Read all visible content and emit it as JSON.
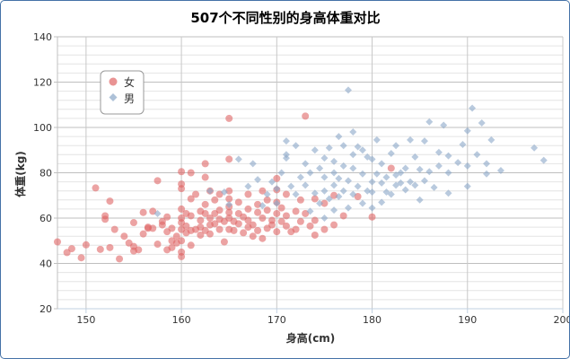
{
  "chart_data": {
    "type": "scatter",
    "title": "507个不同性别的身高体重对比",
    "xlabel": "身高(cm)",
    "ylabel": "体重(kg)",
    "xlim": [
      147,
      200
    ],
    "ylim": [
      20,
      140
    ],
    "xticks": [
      150,
      160,
      170,
      180,
      190,
      200
    ],
    "yticks": [
      20,
      40,
      60,
      80,
      100,
      120,
      140
    ],
    "x_tick_labels": [
      "150",
      "160",
      "170",
      "180",
      "190",
      "200"
    ],
    "y_tick_labels": [
      "20",
      "40",
      "60",
      "80",
      "100",
      "120",
      "140"
    ],
    "grid": true,
    "legend_position": "top-left",
    "series": [
      {
        "name": "女",
        "color": "#e06565",
        "marker": "circle",
        "points": [
          [
            147.0,
            49.5
          ],
          [
            148.0,
            44.8
          ],
          [
            148.5,
            46.5
          ],
          [
            149.5,
            42.5
          ],
          [
            150.0,
            48.2
          ],
          [
            151.0,
            73.3
          ],
          [
            151.5,
            46.2
          ],
          [
            152.0,
            59.5
          ],
          [
            152.0,
            61.0
          ],
          [
            152.5,
            47.0
          ],
          [
            152.5,
            67.5
          ],
          [
            153.0,
            55.0
          ],
          [
            153.5,
            42.0
          ],
          [
            154.0,
            52.0
          ],
          [
            154.5,
            49.0
          ],
          [
            155.0,
            45.5
          ],
          [
            155.0,
            47.5
          ],
          [
            155.0,
            58.0
          ],
          [
            155.5,
            46.0
          ],
          [
            156.0,
            53.0
          ],
          [
            156.0,
            62.5
          ],
          [
            156.5,
            55.5
          ],
          [
            157.0,
            63.0
          ],
          [
            157.0,
            55.5
          ],
          [
            157.5,
            48.5
          ],
          [
            157.5,
            76.5
          ],
          [
            158.0,
            57.0
          ],
          [
            158.0,
            58.5
          ],
          [
            158.5,
            54.0
          ],
          [
            158.5,
            46.0
          ],
          [
            159.0,
            50.0
          ],
          [
            159.0,
            55.5
          ],
          [
            159.0,
            47.0
          ],
          [
            159.5,
            52.0
          ],
          [
            159.5,
            49.0
          ],
          [
            160.0,
            50.0
          ],
          [
            160.0,
            55.0
          ],
          [
            160.0,
            58.0
          ],
          [
            160.0,
            60.0
          ],
          [
            160.0,
            64.0
          ],
          [
            160.0,
            73.0
          ],
          [
            160.0,
            75.0
          ],
          [
            160.0,
            80.5
          ],
          [
            160.0,
            45.0
          ],
          [
            160.0,
            43.0
          ],
          [
            160.5,
            56.5
          ],
          [
            160.5,
            62.0
          ],
          [
            160.5,
            53.5
          ],
          [
            161.0,
            54.5
          ],
          [
            161.0,
            48.0
          ],
          [
            161.0,
            68.5
          ],
          [
            161.0,
            80.0
          ],
          [
            161.5,
            55.0
          ],
          [
            161.5,
            70.5
          ],
          [
            162.0,
            59.0
          ],
          [
            162.0,
            63.0
          ],
          [
            162.0,
            56.0
          ],
          [
            162.0,
            52.5
          ],
          [
            162.5,
            62.0
          ],
          [
            162.5,
            66.0
          ],
          [
            162.5,
            54.5
          ],
          [
            162.5,
            84.0
          ],
          [
            162.5,
            78.0
          ],
          [
            163.0,
            60.0
          ],
          [
            163.0,
            57.0
          ],
          [
            163.0,
            72.0
          ],
          [
            163.0,
            53.0
          ],
          [
            163.5,
            62.0
          ],
          [
            163.5,
            68.0
          ],
          [
            164.0,
            55.0
          ],
          [
            164.0,
            59.5
          ],
          [
            164.0,
            63.5
          ],
          [
            164.0,
            70.5
          ],
          [
            164.5,
            58.5
          ],
          [
            164.5,
            49.5
          ],
          [
            165.0,
            55.0
          ],
          [
            165.0,
            60.0
          ],
          [
            165.0,
            62.5
          ],
          [
            165.0,
            65.0
          ],
          [
            165.0,
            68.5
          ],
          [
            165.0,
            72.0
          ],
          [
            165.0,
            86.0
          ],
          [
            165.0,
            104.0
          ],
          [
            165.5,
            54.5
          ],
          [
            165.5,
            58.5
          ],
          [
            166.0,
            57.5
          ],
          [
            166.0,
            62.0
          ],
          [
            166.0,
            67.0
          ],
          [
            166.5,
            53.5
          ],
          [
            166.5,
            60.5
          ],
          [
            167.0,
            56.0
          ],
          [
            167.0,
            59.0
          ],
          [
            167.0,
            64.0
          ],
          [
            167.0,
            70.5
          ],
          [
            167.5,
            52.0
          ],
          [
            167.5,
            57.0
          ],
          [
            168.0,
            54.5
          ],
          [
            168.0,
            62.5
          ],
          [
            168.0,
            66.0
          ],
          [
            168.5,
            51.0
          ],
          [
            168.5,
            60.0
          ],
          [
            168.5,
            72.0
          ],
          [
            169.0,
            55.5
          ],
          [
            169.0,
            63.5
          ],
          [
            169.0,
            68.0
          ],
          [
            169.5,
            57.0
          ],
          [
            169.5,
            59.0
          ],
          [
            170.0,
            54.0
          ],
          [
            170.0,
            62.0
          ],
          [
            170.0,
            67.0
          ],
          [
            170.0,
            72.5
          ],
          [
            170.0,
            77.5
          ],
          [
            170.5,
            58.5
          ],
          [
            170.5,
            64.5
          ],
          [
            171.0,
            56.5
          ],
          [
            171.0,
            61.0
          ],
          [
            171.0,
            70.5
          ],
          [
            171.5,
            54.0
          ],
          [
            172.0,
            55.0
          ],
          [
            172.0,
            63.0
          ],
          [
            172.5,
            58.5
          ],
          [
            172.5,
            68.0
          ],
          [
            173.0,
            62.0
          ],
          [
            173.0,
            105.0
          ],
          [
            173.5,
            56.5
          ],
          [
            174.0,
            52.5
          ],
          [
            174.0,
            59.0
          ],
          [
            174.0,
            68.5
          ],
          [
            175.0,
            55.0
          ],
          [
            175.0,
            66.5
          ],
          [
            176.0,
            57.0
          ],
          [
            176.0,
            70.0
          ],
          [
            177.0,
            61.0
          ],
          [
            180.0,
            60.5
          ],
          [
            182.0,
            82.0
          ],
          [
            178.5,
            69.5
          ],
          [
            163.5,
            57.5
          ],
          [
            158.5,
            60.5
          ],
          [
            156.5,
            56.0
          ],
          [
            161.0,
            61.0
          ]
        ]
      },
      {
        "name": "男",
        "color": "#8aa6c8",
        "marker": "diamond",
        "points": [
          [
            157.5,
            62.0
          ],
          [
            163.0,
            72.0
          ],
          [
            164.5,
            71.5
          ],
          [
            165.0,
            66.0
          ],
          [
            166.0,
            86.0
          ],
          [
            167.0,
            74.0
          ],
          [
            167.5,
            84.0
          ],
          [
            168.0,
            77.0
          ],
          [
            168.5,
            65.5
          ],
          [
            169.0,
            70.5
          ],
          [
            169.5,
            76.0
          ],
          [
            170.0,
            66.5
          ],
          [
            170.0,
            73.0
          ],
          [
            170.5,
            80.0
          ],
          [
            171.0,
            94.0
          ],
          [
            171.0,
            86.5
          ],
          [
            171.5,
            74.0
          ],
          [
            172.0,
            70.5
          ],
          [
            172.0,
            92.0
          ],
          [
            172.5,
            78.0
          ],
          [
            173.0,
            84.0
          ],
          [
            173.0,
            74.5
          ],
          [
            173.5,
            80.0
          ],
          [
            174.0,
            71.0
          ],
          [
            174.0,
            90.0
          ],
          [
            174.5,
            82.0
          ],
          [
            175.0,
            72.0
          ],
          [
            175.0,
            78.0
          ],
          [
            175.0,
            86.5
          ],
          [
            175.5,
            68.5
          ],
          [
            175.5,
            91.0
          ],
          [
            176.0,
            74.5
          ],
          [
            176.0,
            80.0
          ],
          [
            176.0,
            85.0
          ],
          [
            176.5,
            69.5
          ],
          [
            176.5,
            77.5
          ],
          [
            177.0,
            72.0
          ],
          [
            177.0,
            83.0
          ],
          [
            177.0,
            92.0
          ],
          [
            177.5,
            64.5
          ],
          [
            177.5,
            76.5
          ],
          [
            177.5,
            116.5
          ],
          [
            178.0,
            70.5
          ],
          [
            178.0,
            82.0
          ],
          [
            178.0,
            88.0
          ],
          [
            178.0,
            98.0
          ],
          [
            178.5,
            74.0
          ],
          [
            179.0,
            66.5
          ],
          [
            179.0,
            79.5
          ],
          [
            179.0,
            90.0
          ],
          [
            179.5,
            72.0
          ],
          [
            180.0,
            71.5
          ],
          [
            180.0,
            76.0
          ],
          [
            180.0,
            86.0
          ],
          [
            180.5,
            94.5
          ],
          [
            180.5,
            79.5
          ],
          [
            181.0,
            67.0
          ],
          [
            181.0,
            75.5
          ],
          [
            181.0,
            84.0
          ],
          [
            181.5,
            71.5
          ],
          [
            181.5,
            78.0
          ],
          [
            182.0,
            70.5
          ],
          [
            182.0,
            88.5
          ],
          [
            182.5,
            74.5
          ],
          [
            182.5,
            92.0
          ],
          [
            183.0,
            75.5
          ],
          [
            183.0,
            80.0
          ],
          [
            183.5,
            82.0
          ],
          [
            183.5,
            72.5
          ],
          [
            184.0,
            76.0
          ],
          [
            184.0,
            94.5
          ],
          [
            184.5,
            74.5
          ],
          [
            184.5,
            87.0
          ],
          [
            185.0,
            68.0
          ],
          [
            185.0,
            81.5
          ],
          [
            185.5,
            76.5
          ],
          [
            185.5,
            94.0
          ],
          [
            186.0,
            80.5
          ],
          [
            186.0,
            102.5
          ],
          [
            186.5,
            73.5
          ],
          [
            187.0,
            83.0
          ],
          [
            187.0,
            89.0
          ],
          [
            187.5,
            101.0
          ],
          [
            188.0,
            71.0
          ],
          [
            188.0,
            80.0
          ],
          [
            188.0,
            87.5
          ],
          [
            189.0,
            84.5
          ],
          [
            189.5,
            92.5
          ],
          [
            190.0,
            74.0
          ],
          [
            190.0,
            83.0
          ],
          [
            190.0,
            98.5
          ],
          [
            190.5,
            108.5
          ],
          [
            191.0,
            88.0
          ],
          [
            191.5,
            102.0
          ],
          [
            192.0,
            84.0
          ],
          [
            192.0,
            79.5
          ],
          [
            192.5,
            94.5
          ],
          [
            193.5,
            81.0
          ],
          [
            197.0,
            91.0
          ],
          [
            198.0,
            85.5
          ],
          [
            171.0,
            88.0
          ],
          [
            173.5,
            63.0
          ],
          [
            176.0,
            63.5
          ],
          [
            174.5,
            66.5
          ],
          [
            178.5,
            91.5
          ],
          [
            180.0,
            64.5
          ],
          [
            182.5,
            79.0
          ],
          [
            179.5,
            87.0
          ],
          [
            176.5,
            96.0
          ],
          [
            175.0,
            60.0
          ]
        ]
      }
    ]
  }
}
